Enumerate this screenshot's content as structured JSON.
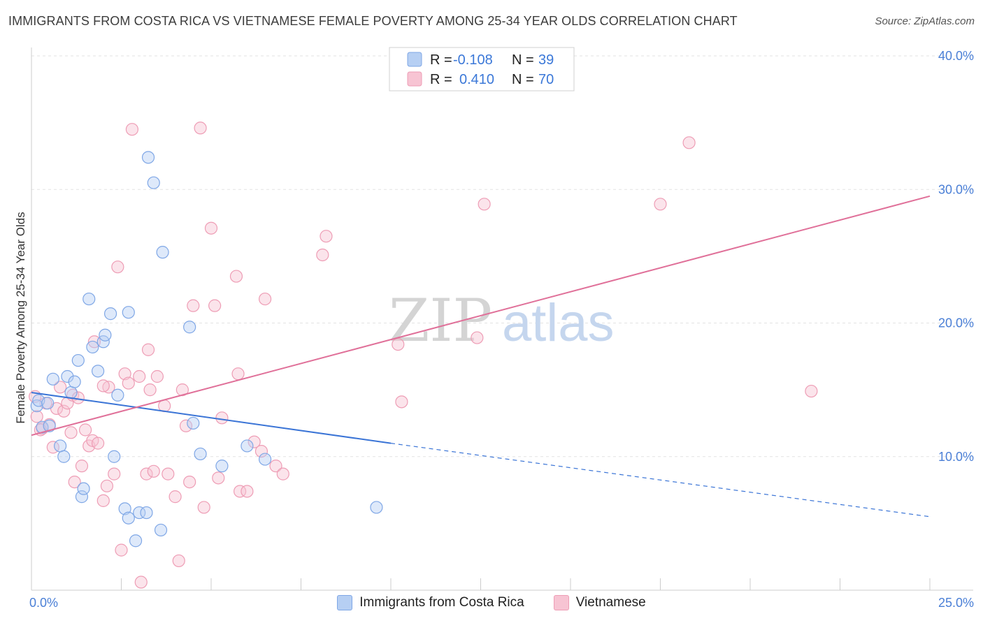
{
  "page": {
    "title": "IMMIGRANTS FROM COSTA RICA VS VIETNAMESE FEMALE POVERTY AMONG 25-34 YEAR OLDS CORRELATION CHART",
    "source": "Source: ZipAtlas.com",
    "watermark_bold": "ZIP",
    "watermark_light": "atlas"
  },
  "colors": {
    "blue_fill": "#b6cff3",
    "blue_stroke": "#7fa7e6",
    "blue_line": "#3a74d6",
    "pink_fill": "#f7c4d3",
    "pink_stroke": "#ee9db5",
    "pink_line": "#e07099",
    "axis_label": "#4a7fd6",
    "grid": "#e3e3e3"
  },
  "legend": {
    "rows": [
      {
        "r_label": "R =",
        "r_value": "-0.108",
        "n_label": "N =",
        "n_value": "39"
      },
      {
        "r_label": "R =",
        "r_value": "0.410",
        "n_label": "N =",
        "n_value": "70"
      }
    ]
  },
  "bottom_legend": {
    "series1": "Immigrants from Costa Rica",
    "series2": "Vietnamese"
  },
  "chart_data": {
    "type": "scatter",
    "title": "IMMIGRANTS FROM COSTA RICA VS VIETNAMESE FEMALE POVERTY AMONG 25-34 YEAR OLDS CORRELATION CHART",
    "xlabel": "",
    "ylabel": "Female Poverty Among 25-34 Year Olds",
    "xlim": [
      0,
      25
    ],
    "ylim": [
      0,
      40
    ],
    "x_tick_labels": [
      "0.0%",
      "25.0%"
    ],
    "y_ticks": [
      10,
      20,
      30,
      40
    ],
    "y_tick_labels": [
      "10.0%",
      "20.0%",
      "30.0%",
      "40.0%"
    ],
    "series": [
      {
        "name": "Immigrants from Costa Rica",
        "R": -0.108,
        "N": 39,
        "trend": {
          "x0": 0,
          "y0": 14.8,
          "x1": 10.0,
          "y1": 11.0,
          "dash_to_x": 25.0,
          "dash_to_y": 5.5
        },
        "points": [
          [
            0.15,
            13.8
          ],
          [
            0.2,
            14.2
          ],
          [
            0.3,
            12.2
          ],
          [
            0.45,
            14.0
          ],
          [
            0.5,
            12.3
          ],
          [
            0.6,
            15.8
          ],
          [
            0.8,
            10.8
          ],
          [
            0.9,
            10.0
          ],
          [
            1.0,
            16.0
          ],
          [
            1.1,
            14.8
          ],
          [
            1.2,
            15.6
          ],
          [
            1.3,
            17.2
          ],
          [
            1.4,
            7.0
          ],
          [
            1.45,
            7.6
          ],
          [
            1.6,
            21.8
          ],
          [
            1.7,
            18.2
          ],
          [
            1.85,
            16.4
          ],
          [
            2.0,
            18.6
          ],
          [
            2.05,
            19.1
          ],
          [
            2.2,
            20.7
          ],
          [
            2.3,
            10.0
          ],
          [
            2.4,
            14.6
          ],
          [
            2.6,
            6.1
          ],
          [
            2.7,
            5.4
          ],
          [
            2.9,
            3.7
          ],
          [
            3.0,
            5.8
          ],
          [
            3.2,
            5.8
          ],
          [
            3.25,
            32.4
          ],
          [
            3.4,
            30.5
          ],
          [
            3.6,
            4.5
          ],
          [
            3.65,
            25.3
          ],
          [
            2.7,
            20.8
          ],
          [
            4.4,
            19.7
          ],
          [
            4.5,
            12.5
          ],
          [
            4.7,
            10.2
          ],
          [
            5.3,
            9.3
          ],
          [
            6.0,
            10.8
          ],
          [
            6.5,
            9.8
          ],
          [
            9.6,
            6.2
          ]
        ]
      },
      {
        "name": "Vietnamese",
        "R": 0.41,
        "N": 70,
        "trend": {
          "x0": 0,
          "y0": 11.6,
          "x1": 25.0,
          "y1": 29.5
        },
        "points": [
          [
            0.1,
            14.5
          ],
          [
            0.15,
            13.0
          ],
          [
            0.3,
            12.1
          ],
          [
            0.4,
            14.0
          ],
          [
            0.5,
            12.4
          ],
          [
            0.6,
            10.7
          ],
          [
            0.7,
            13.6
          ],
          [
            0.8,
            15.2
          ],
          [
            0.9,
            13.4
          ],
          [
            1.0,
            14.0
          ],
          [
            1.1,
            11.8
          ],
          [
            1.15,
            14.6
          ],
          [
            1.2,
            8.1
          ],
          [
            1.3,
            14.4
          ],
          [
            1.4,
            9.3
          ],
          [
            1.5,
            12.0
          ],
          [
            1.6,
            10.8
          ],
          [
            1.7,
            11.2
          ],
          [
            1.75,
            18.6
          ],
          [
            1.85,
            11.0
          ],
          [
            2.0,
            6.7
          ],
          [
            2.1,
            7.8
          ],
          [
            2.15,
            15.2
          ],
          [
            2.3,
            8.7
          ],
          [
            2.4,
            24.2
          ],
          [
            2.5,
            3.0
          ],
          [
            2.6,
            16.2
          ],
          [
            2.7,
            15.5
          ],
          [
            2.8,
            34.5
          ],
          [
            3.0,
            16.0
          ],
          [
            3.05,
            0.6
          ],
          [
            3.2,
            8.7
          ],
          [
            3.25,
            18.0
          ],
          [
            3.3,
            15.0
          ],
          [
            3.4,
            8.9
          ],
          [
            3.5,
            16.0
          ],
          [
            3.7,
            13.8
          ],
          [
            3.8,
            8.7
          ],
          [
            4.0,
            7.0
          ],
          [
            4.1,
            2.2
          ],
          [
            4.2,
            15.0
          ],
          [
            4.3,
            12.3
          ],
          [
            4.4,
            8.1
          ],
          [
            4.5,
            21.3
          ],
          [
            4.7,
            34.6
          ],
          [
            4.8,
            6.2
          ],
          [
            5.0,
            27.1
          ],
          [
            5.1,
            21.3
          ],
          [
            5.2,
            8.4
          ],
          [
            5.3,
            12.9
          ],
          [
            5.7,
            23.5
          ],
          [
            5.75,
            16.2
          ],
          [
            5.8,
            7.4
          ],
          [
            6.0,
            7.4
          ],
          [
            6.2,
            11.1
          ],
          [
            6.4,
            10.4
          ],
          [
            6.5,
            21.8
          ],
          [
            6.8,
            9.3
          ],
          [
            7.0,
            8.7
          ],
          [
            8.1,
            25.1
          ],
          [
            8.2,
            26.5
          ],
          [
            10.2,
            18.4
          ],
          [
            10.3,
            14.1
          ],
          [
            12.4,
            18.9
          ],
          [
            12.6,
            28.9
          ],
          [
            17.5,
            28.9
          ],
          [
            18.3,
            33.5
          ],
          [
            21.7,
            14.9
          ],
          [
            0.25,
            12.0
          ],
          [
            2.0,
            15.3
          ]
        ]
      }
    ]
  }
}
